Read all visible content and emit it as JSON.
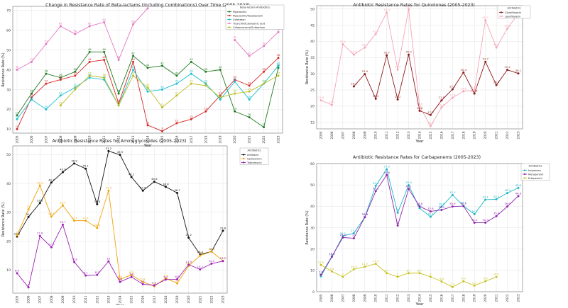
{
  "chart_data": [
    {
      "type": "line",
      "title": "Change in Resistance Rate of Beta-lactams (Including Combinations) Over Time (2005-2023)",
      "xlabel": "Year",
      "ylabel": "Resistance Rate (%)",
      "x": [
        2005,
        2006,
        2007,
        2008,
        2009,
        2010,
        2011,
        2012,
        2013,
        2014,
        2015,
        2016,
        2017,
        2018,
        2019,
        2020,
        2021,
        2022,
        2023
      ],
      "ylim": [
        8,
        72
      ],
      "yticks": [
        10,
        20,
        30,
        40,
        50,
        60,
        70
      ],
      "legend_title": "Beta-lactam Antibiotics",
      "legend_position": "top-right",
      "grid": true,
      "series": [
        {
          "name": "Piperacillin",
          "color": "#1f7a1f",
          "values": [
            17,
            28,
            38,
            36,
            39,
            49,
            49,
            28,
            47,
            41,
            42,
            37,
            44,
            39,
            40,
            19,
            16,
            11,
            41
          ]
        },
        {
          "name": "Piperacillin/Tazobactam",
          "color": "#d62728",
          "values": [
            10,
            26,
            33,
            35,
            37,
            44,
            45,
            23,
            44,
            12,
            9,
            13,
            15,
            19,
            27,
            35,
            32,
            39,
            46
          ]
        },
        {
          "name": "Cefotetan",
          "color": "#17becf",
          "values": [
            15,
            25,
            20,
            27,
            31,
            36,
            35,
            22,
            40,
            29,
            30,
            33,
            38,
            33,
            25,
            34,
            25,
            33,
            42
          ]
        },
        {
          "name": "Ticarcillin/Clavulanic acid",
          "color": "#e377c2",
          "values": [
            40,
            44,
            53,
            62,
            58,
            62,
            64,
            45,
            63,
            71,
            null,
            null,
            null,
            null,
            null,
            55,
            47,
            52,
            59
          ]
        },
        {
          "name": "Cefoperazone/Sulbactam",
          "color": "#bcbd22",
          "values": [
            null,
            null,
            null,
            22,
            30,
            37,
            36,
            22,
            37,
            31,
            21,
            27,
            33,
            32,
            26,
            28,
            29,
            33,
            37
          ]
        }
      ]
    },
    {
      "type": "line",
      "title": "Antibiotic Resistance Rates for Quinolones (2005-2023)",
      "xlabel": "Year",
      "ylabel": "Resistance Rate (%)",
      "x": [
        2005,
        2006,
        2007,
        2008,
        2009,
        2010,
        2011,
        2012,
        2013,
        2014,
        2015,
        2016,
        2017,
        2018,
        2019,
        2020,
        2021,
        2022,
        2023
      ],
      "ylim": [
        13,
        51
      ],
      "yticks": [
        15,
        20,
        25,
        30,
        35,
        40,
        45,
        50
      ],
      "legend_title": "Antibiotics",
      "legend_position": "top-left",
      "grid": true,
      "series": [
        {
          "name": "Ciprofloxacin",
          "color": "#8b1a1a",
          "values": [
            null,
            null,
            null,
            26.1,
            29.9,
            22.3,
            35.7,
            22.1,
            35.9,
            18.6,
            17.3,
            21.8,
            25.2,
            30.4,
            23.9,
            33.7,
            26.5,
            31.2,
            30.1
          ]
        },
        {
          "name": "Levofloxacin",
          "color": "#f4a6b7",
          "values": [
            21.8,
            20.4,
            39.1,
            35.9,
            38.1,
            42.3,
            48.9,
            31.3,
            49.9,
            19.9,
            13.9,
            19.6,
            22.6,
            24.6,
            24.9,
            46.5,
            38.1,
            43.9,
            48.5
          ]
        }
      ]
    },
    {
      "type": "line",
      "title": "Antibiotic Resistance Rates for Aminoglycosides (2005-2023)",
      "xlabel": "Year",
      "ylabel": "Resistance Rate (%)",
      "x": [
        2005,
        2006,
        2007,
        2008,
        2009,
        2010,
        2011,
        2012,
        2013,
        2014,
        2015,
        2016,
        2017,
        2018,
        2019,
        2020,
        2021,
        2022,
        2023
      ],
      "ylim": [
        2,
        53
      ],
      "yticks": [
        10,
        20,
        30,
        40,
        50
      ],
      "legend_title": "Antibiotics",
      "legend_position": "top-right",
      "grid": true,
      "series": [
        {
          "name": "Amikacin",
          "color": "#111111",
          "values": [
            21.6,
            28.4,
            33.2,
            40.3,
            43.9,
            46.9,
            45.1,
            32.8,
            51.2,
            49.9,
            42.2,
            37.5,
            40.6,
            38.8,
            36.7,
            21.2,
            15.4,
            16.4,
            23.6
          ]
        },
        {
          "name": "Gentamicin",
          "color": "#f0a30a",
          "values": [
            22.0,
            31.0,
            39.3,
            28.5,
            32.4,
            27.1,
            27.1,
            24.6,
            37.5,
            6.8,
            8.3,
            5.9,
            4.4,
            7.2,
            5.4,
            11.4,
            15.0,
            16.4,
            13.2
          ]
        },
        {
          "name": "Tobramycin",
          "color": "#9b1fb3",
          "values": [
            8.9,
            4.0,
            21.8,
            17.9,
            25.7,
            12.8,
            8.1,
            8.3,
            13.0,
            5.9,
            7.6,
            5.1,
            4.7,
            6.7,
            6.8,
            11.9,
            10.2,
            12.2,
            13.1
          ]
        }
      ]
    },
    {
      "type": "line",
      "title": "Antibiotic Resistance Rates for Carbapenems (2005-2023)",
      "xlabel": "Year",
      "ylabel": "Resistance Rate (%)",
      "x": [
        2005,
        2006,
        2007,
        2008,
        2009,
        2010,
        2011,
        2012,
        2013,
        2014,
        2015,
        2016,
        2017,
        2018,
        2019,
        2020,
        2021,
        2022,
        2023
      ],
      "ylim": [
        0,
        60
      ],
      "yticks": [
        0,
        10,
        20,
        30,
        40,
        50,
        60
      ],
      "legend_title": "Antibiotics",
      "legend_position": "top-right",
      "grid": true,
      "series": [
        {
          "name": "Imipenem",
          "color": "#1fb7c7",
          "values": [
            7.2,
            16.3,
            26.1,
            27.4,
            34.9,
            49.6,
            57.3,
            37.0,
            49.9,
            39.1,
            35.1,
            39.8,
            45.3,
            40.2,
            36.3,
            43.1,
            43.3,
            46.2,
            48.6
          ]
        },
        {
          "name": "Meropenem",
          "color": "#8e24aa",
          "values": [
            7.9,
            16.5,
            25.4,
            25.0,
            34.9,
            47.1,
            54.6,
            31.0,
            48.1,
            39.9,
            37.6,
            38.3,
            39.9,
            40.1,
            32.3,
            32.3,
            35.4,
            39.9,
            44.8
          ]
        },
        {
          "name": "Ertapenem",
          "color": "#c7c21f",
          "values": [
            12.5,
            9.5,
            7.0,
            10.5,
            11.7,
            13.1,
            8.7,
            7.0,
            8.7,
            8.7,
            7.0,
            4.8,
            2.2,
            4.9,
            2.9,
            4.9,
            6.9,
            null,
            null
          ]
        }
      ]
    }
  ]
}
